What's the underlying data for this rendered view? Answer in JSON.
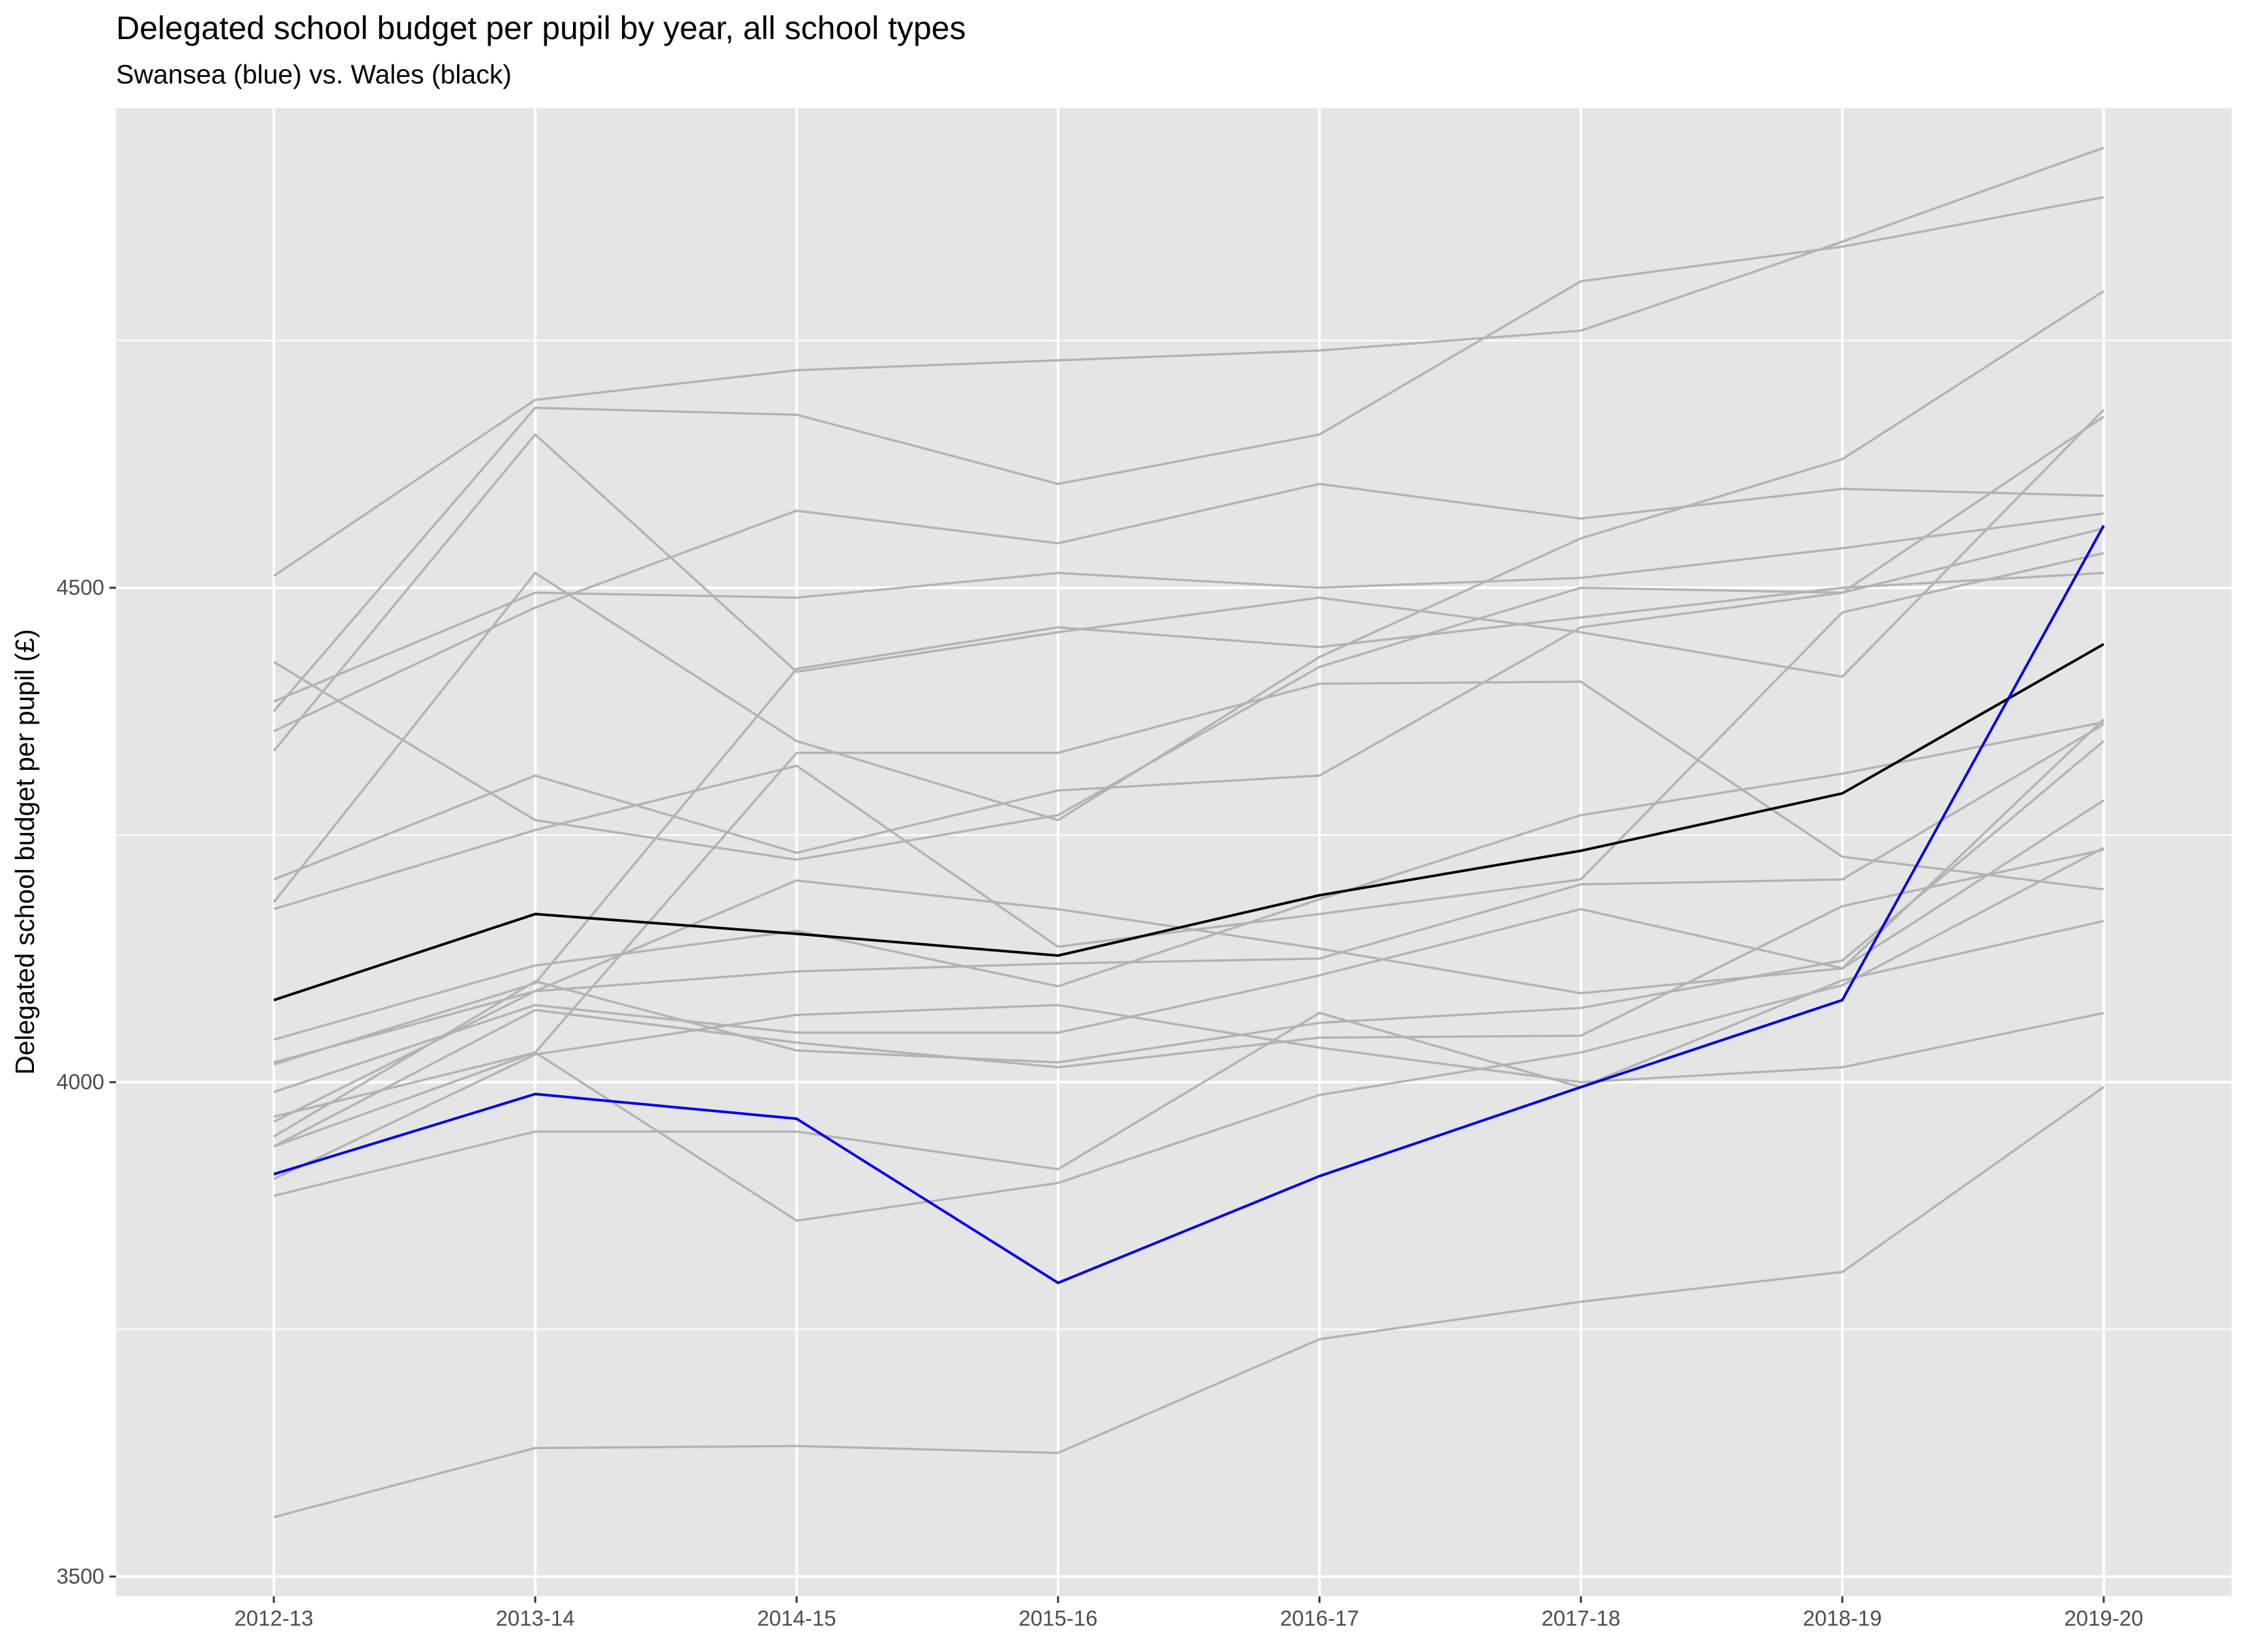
{
  "chart_data": {
    "type": "line",
    "title": "Delegated school budget per pupil by year, all school types",
    "subtitle": "Swansea (blue) vs. Wales (black)",
    "xlabel": "",
    "ylabel": "Delegated school budget per pupil (£)",
    "categories": [
      "2012-13",
      "2013-14",
      "2014-15",
      "2015-16",
      "2016-17",
      "2017-18",
      "2018-19",
      "2019-20"
    ],
    "ylim": [
      3480,
      4985
    ],
    "yticks": [
      3500,
      4000,
      4500
    ],
    "grid": true,
    "legend": "none",
    "colors": {
      "panel": "#e5e5e5",
      "grid": "#ffffff",
      "other": "#b3b3b3",
      "swansea": "#0000ee",
      "wales": "#000000"
    },
    "series": [
      {
        "values": [
          4512,
          4690,
          4720,
          4730,
          4740,
          4760,
          4850,
          4945
        ]
      },
      {
        "values": [
          4375,
          4682,
          4675,
          4605,
          4655,
          4810,
          4845,
          4895
        ]
      },
      {
        "values": [
          4335,
          4655,
          4415,
          4455,
          4490,
          4455,
          4410,
          4680
        ]
      },
      {
        "values": [
          4385,
          4495,
          4490,
          4515,
          4500,
          4510,
          4540,
          4575
        ]
      },
      {
        "values": [
          4355,
          4480,
          4578,
          4545,
          4605,
          4570,
          4600,
          4593
        ]
      },
      {
        "values": [
          4182,
          4515,
          4345,
          4265,
          4430,
          4550,
          4630,
          4800
        ]
      },
      {
        "values": [
          4205,
          4310,
          4232,
          4295,
          4310,
          4460,
          4495,
          4673
        ]
      },
      {
        "values": [
          4425,
          4265,
          4225,
          4270,
          4420,
          4500,
          4495,
          4560
        ]
      },
      {
        "values": [
          4175,
          4255,
          4320,
          4137,
          4170,
          4205,
          4475,
          4535
        ]
      },
      {
        "values": [
          4018,
          4100,
          4418,
          4460,
          4440,
          4470,
          4500,
          4515
        ]
      },
      {
        "values": [
          3935,
          4030,
          4333,
          4333,
          4403,
          4405,
          4228,
          4195
        ]
      },
      {
        "values": [
          4020,
          4092,
          4204,
          4175,
          4135,
          4090,
          4115,
          4285
        ]
      },
      {
        "values": [
          4043,
          4118,
          4153,
          4097,
          4185,
          4270,
          4312,
          4364
        ]
      },
      {
        "values": [
          3990,
          4078,
          4050,
          4050,
          4108,
          4175,
          4115,
          4367
        ]
      },
      {
        "values": [
          3960,
          4092,
          4112,
          4120,
          4125,
          4200,
          4205,
          4362
        ]
      },
      {
        "values": [
          3945,
          4102,
          4032,
          4020,
          4060,
          4075,
          4123,
          4345
        ]
      },
      {
        "values": [
          3935,
          4073,
          4040,
          4015,
          4045,
          4047,
          4178,
          4235
        ]
      },
      {
        "values": [
          3902,
          4028,
          4068,
          4078,
          4035,
          4000,
          4015,
          4070
        ]
      },
      {
        "values": [
          3885,
          3950,
          3950,
          3912,
          4070,
          3995,
          4103,
          4163
        ]
      },
      {
        "values": [
          3965,
          4030,
          3860,
          3898,
          3987,
          4030,
          4098,
          4237
        ]
      },
      {
        "values": [
          3560,
          3630,
          3632,
          3625,
          3740,
          3778,
          3808,
          3995
        ]
      },
      {
        "name": "Wales",
        "values": [
          4083,
          4170,
          4150,
          4128,
          4189,
          4234,
          4292,
          4443
        ]
      },
      {
        "name": "Swansea",
        "values": [
          3907,
          3988,
          3963,
          3797,
          3905,
          3995,
          4083,
          4563
        ]
      }
    ]
  }
}
